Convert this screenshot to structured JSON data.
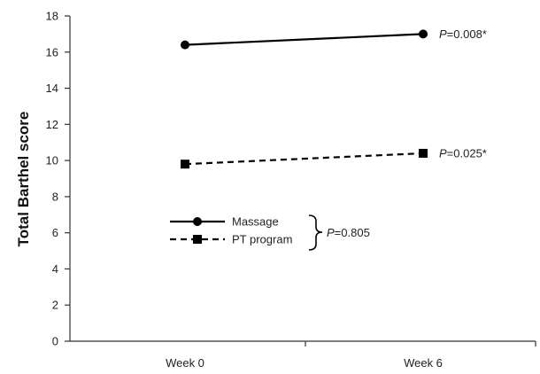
{
  "chart_data": {
    "type": "line",
    "categories": [
      "Week 0",
      "Week 6"
    ],
    "ylabel": "Total Barthel score",
    "xlabel": "",
    "ylim": [
      0,
      18
    ],
    "yticks": [
      "0",
      "2",
      "4",
      "6",
      "8",
      "10",
      "12",
      "14",
      "16",
      "18"
    ],
    "grid": false,
    "legend_position": "center-left",
    "series": [
      {
        "name": "Massage",
        "values": [
          16.4,
          17.0
        ],
        "line_style": "solid",
        "marker": "circle",
        "color": "#000000",
        "annotation": {
          "italic": "P",
          "text": "=0.008*"
        }
      },
      {
        "name": "PT program",
        "values": [
          9.8,
          10.4
        ],
        "line_style": "dashed",
        "marker": "square",
        "color": "#000000",
        "annotation": {
          "italic": "P",
          "text": "=0.025*"
        }
      }
    ],
    "group_annotation": {
      "italic": "P",
      "text": "=0.805"
    }
  }
}
